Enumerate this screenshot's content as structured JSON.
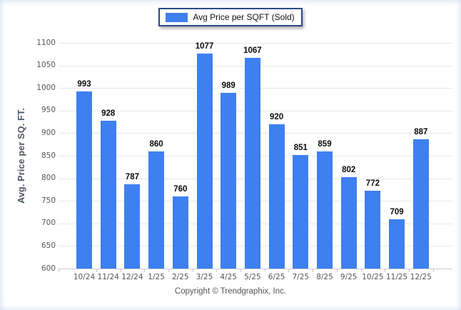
{
  "legend": {
    "label": "Avg Price per SQFT (Sold)",
    "swatch_color": "#3e80f0",
    "border_color": "#2a4b86"
  },
  "footer": {
    "text": "Copyright © Trendgraphix, Inc."
  },
  "chart_data": {
    "type": "bar",
    "title": "",
    "xlabel": "",
    "ylabel": "Avg. Price per SQ. FT.",
    "categories": [
      "10/24",
      "11/24",
      "12/24",
      "1/25",
      "2/25",
      "3/25",
      "4/25",
      "5/25",
      "6/25",
      "7/25",
      "8/25",
      "9/25",
      "10/25",
      "11/25",
      "12/25"
    ],
    "values": [
      993,
      928,
      787,
      860,
      760,
      1077,
      989,
      1067,
      920,
      851,
      859,
      802,
      772,
      709,
      887
    ],
    "series": [
      {
        "name": "Avg Price per SQFT (Sold)",
        "values": [
          993,
          928,
          787,
          860,
          760,
          1077,
          989,
          1067,
          920,
          851,
          859,
          802,
          772,
          709,
          887
        ]
      }
    ],
    "ylim": [
      600,
      1100
    ],
    "ytick_step": 50,
    "bar_color": "#3e80f0",
    "grid": true,
    "legend_position": "top-center",
    "value_labels_shown": true
  }
}
